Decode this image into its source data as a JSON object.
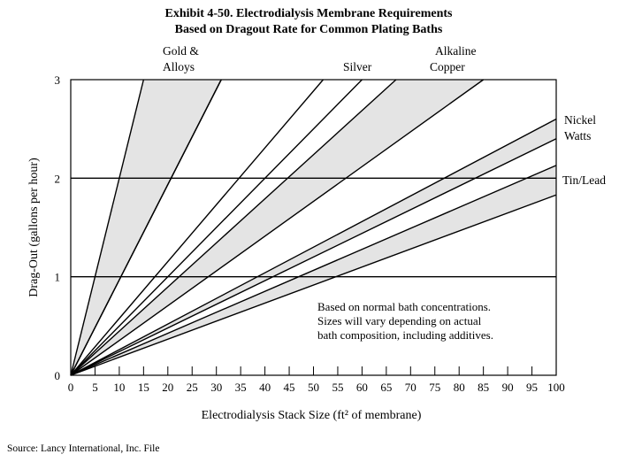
{
  "chart_data": {
    "type": "line",
    "title_line1": "Exhibit 4-50. Electrodialysis Membrane Requirements",
    "title_line2": "Based on Dragout Rate for Common Plating Baths",
    "xlabel": "Electrodialysis Stack Size (ft² of membrane)",
    "ylabel": "Drag-Out (gallons per hour)",
    "xlim": [
      0,
      100
    ],
    "ylim": [
      0,
      3
    ],
    "x_ticks": [
      "0",
      "5",
      "10",
      "15",
      "20",
      "25",
      "30",
      "35",
      "40",
      "45",
      "50",
      "55",
      "60",
      "65",
      "70",
      "75",
      "80",
      "85",
      "90",
      "95",
      "100"
    ],
    "y_ticks": [
      "0",
      "1",
      "2",
      "3"
    ],
    "grid": "horizontal lines at y=1 and y=2",
    "bands": [
      {
        "name": "Gold & Alloys",
        "lower_line_x_at_y3": 31,
        "upper_line_x_at_y3": 15,
        "shaded": true
      },
      {
        "name": "Silver",
        "lower_line_x_at_y3": 52,
        "upper_line_x_at_y3": 31,
        "shaded": false
      },
      {
        "name": "Alkaline Copper",
        "lower_line_x_at_y3": 85,
        "upper_line_x_at_y3": 67,
        "shaded": true
      },
      {
        "name": "Nickel Watts",
        "lower_line_y_at_x100": 2.4,
        "upper_line_y_at_x100": 2.6,
        "shaded": true
      },
      {
        "name": "Tin/Lead",
        "lower_line_y_at_x100": 1.83,
        "upper_line_y_at_x100": 2.13,
        "shaded": true
      }
    ],
    "extra_lines_x_at_y3": [
      60
    ],
    "series_labels": {
      "gold_line1": "Gold &",
      "gold_line2": "Alloys",
      "silver": "Silver",
      "copper_line1": "Alkaline",
      "copper_line2": "Copper",
      "nickel_line1": "Nickel",
      "nickel_line2": "Watts",
      "tinlead": "Tin/Lead"
    },
    "note_lines": [
      "Based on normal bath concentrations.",
      "Sizes will vary depending on actual",
      "bath composition, including additives."
    ],
    "colors": {
      "band_fill": "#e4e4e4",
      "line": "#000000"
    }
  },
  "source": "Source:  Lancy International, Inc. File"
}
